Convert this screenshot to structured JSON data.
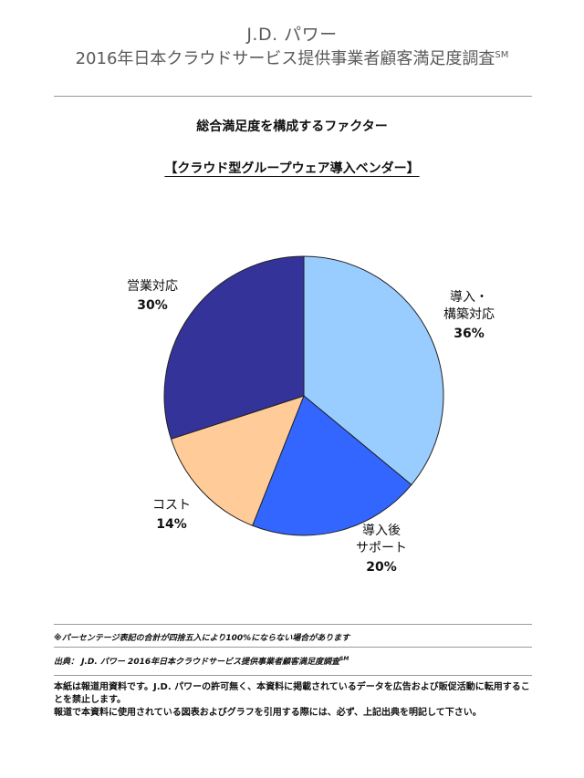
{
  "header": {
    "brand": "J.D. パワー",
    "survey_title": "2016年日本クラウドサービス提供事業者顧客満足度調査",
    "survey_mark": "SM"
  },
  "chart_data": {
    "type": "pie",
    "title": "総合満足度を構成するファクター",
    "subtitle": "【クラウド型グループウェア導入ベンダー】",
    "slices": [
      {
        "label_lines": [
          "導入・",
          "構築対応"
        ],
        "value": 36,
        "value_text": "36%",
        "color": "#99ccff"
      },
      {
        "label_lines": [
          "導入後",
          "サポート"
        ],
        "value": 20,
        "value_text": "20%",
        "color": "#3366ff"
      },
      {
        "label_lines": [
          "コスト"
        ],
        "value": 14,
        "value_text": "14%",
        "color": "#ffcc99"
      },
      {
        "label_lines": [
          "営業対応"
        ],
        "value": 30,
        "value_text": "30%",
        "color": "#333399"
      }
    ]
  },
  "footnotes": {
    "rounding_note": "※パーセンテージ表記の合計が四捨五入により100%にならない場合があります",
    "source_note": "出典： J.D. パワー 2016年日本クラウドサービス提供事業者顧客満足度調査",
    "source_mark": "SM"
  },
  "disclaimer": {
    "line1": "本紙は報道用資料です。J.D. パワーの許可無く、本資料に掲載されているデータを広告および販促活動に転用することを禁止します。",
    "line2": "報道で本資料に使用されている図表およびグラフを引用する際には、必ず、上記出典を明記して下さい。"
  }
}
